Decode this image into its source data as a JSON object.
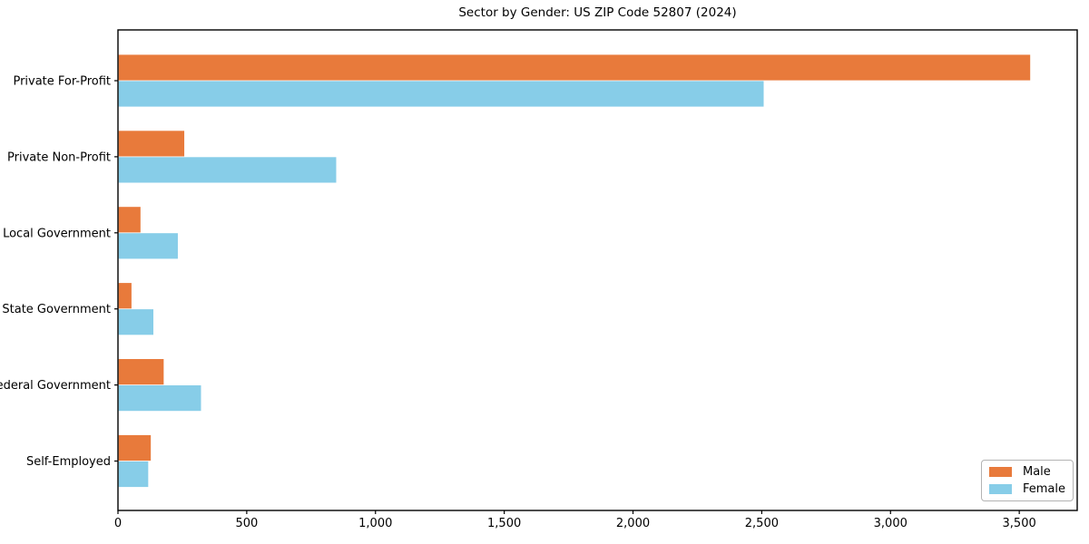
{
  "chart_data": {
    "type": "bar",
    "orientation": "horizontal",
    "title": "Sector by Gender: US ZIP Code 52807 (2024)",
    "categories": [
      "Private For-Profit",
      "Private Non-Profit",
      "Local Government",
      "State Government",
      "Federal Government",
      "Self-Employed"
    ],
    "series": [
      {
        "name": "Male",
        "color": "#E87A3B",
        "values": [
          3540,
          255,
          85,
          50,
          175,
          125
        ]
      },
      {
        "name": "Female",
        "color": "#87CDE8",
        "values": [
          2505,
          845,
          230,
          135,
          320,
          115
        ]
      }
    ],
    "xlabel": "",
    "ylabel": "",
    "xlim": [
      0,
      3725
    ],
    "xticks": [
      0,
      500,
      1000,
      1500,
      2000,
      2500,
      3000,
      3500
    ],
    "grid": false,
    "legend_position": "lower right",
    "axis_color": "#000000",
    "text_color": "#000000",
    "background": "#ffffff"
  }
}
